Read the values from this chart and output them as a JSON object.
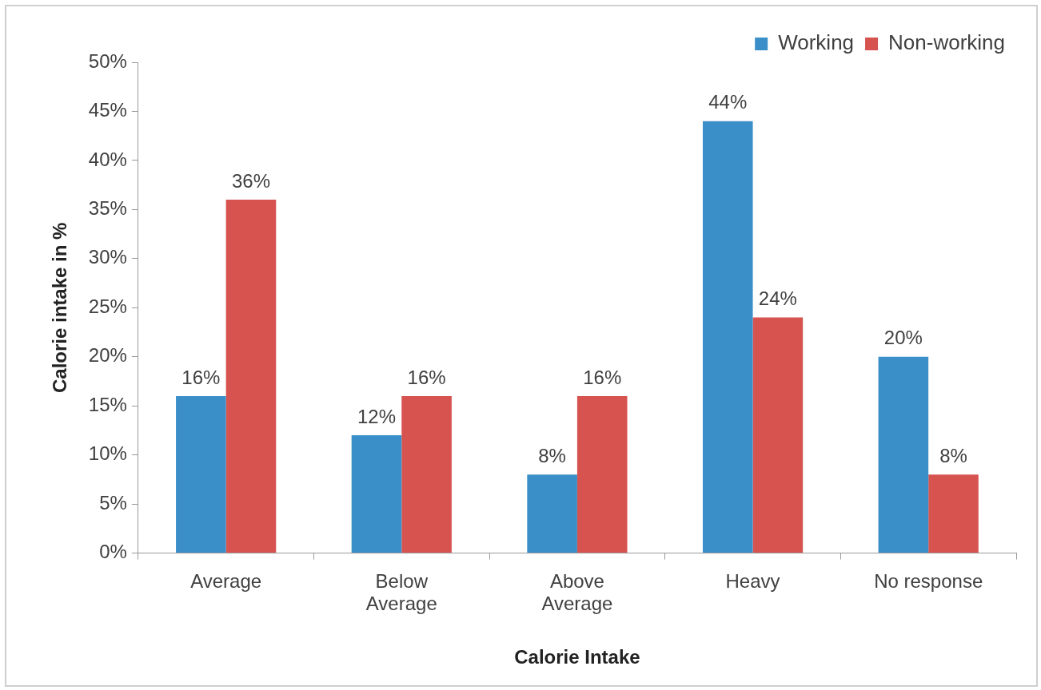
{
  "chart_data": {
    "type": "bar",
    "xlabel": "Calorie Intake",
    "ylabel": "Calorie intake in %",
    "categories": [
      "Average",
      "Below Average",
      "Above Average",
      "Heavy",
      "No response"
    ],
    "series": [
      {
        "name": "Working",
        "color": "#3a8fc8",
        "values": [
          16,
          12,
          8,
          44,
          20
        ],
        "value_labels": [
          "16%",
          "12%",
          "8%",
          "44%",
          "20%"
        ]
      },
      {
        "name": "Non-working",
        "color": "#d6534f",
        "values": [
          36,
          16,
          16,
          24,
          8
        ],
        "value_labels": [
          "36%",
          "16%",
          "16%",
          "24%",
          "8%"
        ]
      }
    ],
    "ylim": [
      0,
      50
    ],
    "yticks": [
      {
        "value": 0,
        "label": "0%"
      },
      {
        "value": 5,
        "label": "5%"
      },
      {
        "value": 10,
        "label": "10%"
      },
      {
        "value": 15,
        "label": "15%"
      },
      {
        "value": 20,
        "label": "20%"
      },
      {
        "value": 25,
        "label": "25%"
      },
      {
        "value": 30,
        "label": "30%"
      },
      {
        "value": 35,
        "label": "35%"
      },
      {
        "value": 40,
        "label": "40%"
      },
      {
        "value": 45,
        "label": "45%"
      },
      {
        "value": 50,
        "label": "50%"
      }
    ],
    "grid": false,
    "legend": "top right"
  }
}
